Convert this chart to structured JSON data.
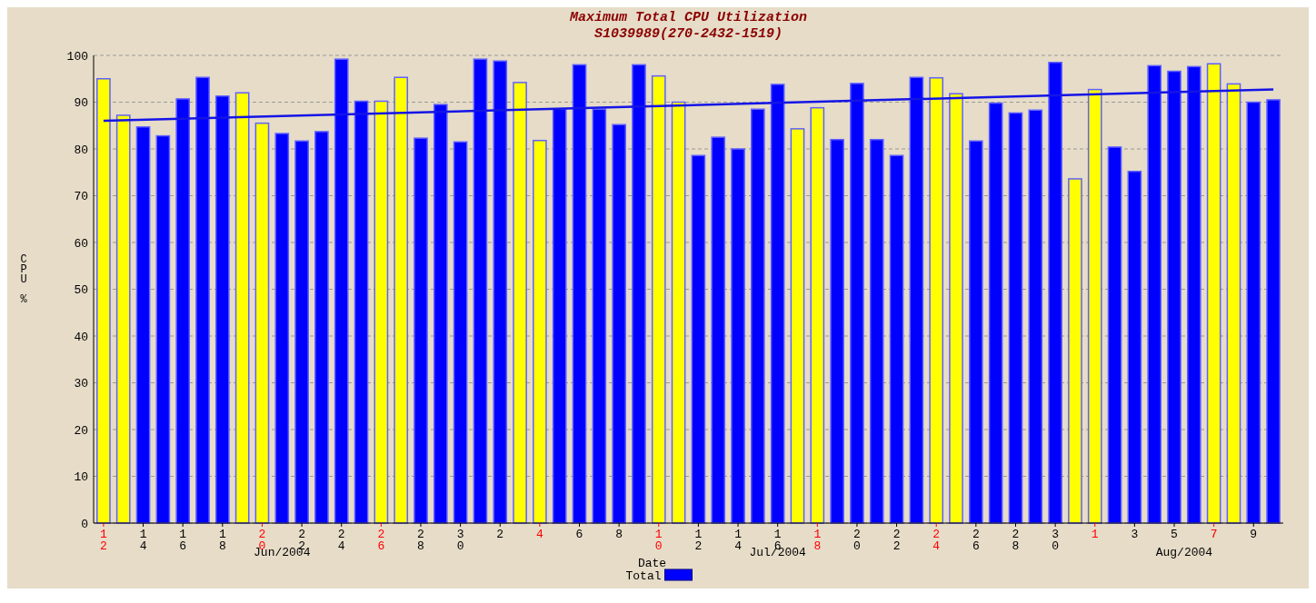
{
  "chart_data": {
    "type": "bar",
    "title": "Maximum Total CPU Utilization",
    "subtitle": "S1039989(270-2432-1519)",
    "xlabel": "Date",
    "ylabel": "CPU %",
    "x": [
      "2004-06-12",
      "2004-06-13",
      "2004-06-14",
      "2004-06-15",
      "2004-06-16",
      "2004-06-17",
      "2004-06-18",
      "2004-06-19",
      "2004-06-20",
      "2004-06-21",
      "2004-06-22",
      "2004-06-23",
      "2004-06-24",
      "2004-06-25",
      "2004-06-26",
      "2004-06-27",
      "2004-06-28",
      "2004-06-29",
      "2004-06-30",
      "2004-07-01",
      "2004-07-02",
      "2004-07-03",
      "2004-07-04",
      "2004-07-05",
      "2004-07-06",
      "2004-07-07",
      "2004-07-08",
      "2004-07-09",
      "2004-07-10",
      "2004-07-11",
      "2004-07-12",
      "2004-07-13",
      "2004-07-14",
      "2004-07-15",
      "2004-07-16",
      "2004-07-17",
      "2004-07-18",
      "2004-07-19",
      "2004-07-20",
      "2004-07-21",
      "2004-07-22",
      "2004-07-23",
      "2004-07-24",
      "2004-07-25",
      "2004-07-26",
      "2004-07-27",
      "2004-07-28",
      "2004-07-29",
      "2004-07-30",
      "2004-07-31",
      "2004-08-01",
      "2004-08-02",
      "2004-08-03",
      "2004-08-04",
      "2004-08-05",
      "2004-08-06",
      "2004-08-07",
      "2004-08-08",
      "2004-08-09",
      "2004-08-10"
    ],
    "series": [
      {
        "name": "Total",
        "color": "#0000ff",
        "colors": [
          "#ffff00",
          "#ffff00",
          "#0000ff",
          "#0000ff",
          "#0000ff",
          "#0000ff",
          "#0000ff",
          "#ffff00",
          "#ffff00",
          "#0000ff",
          "#0000ff",
          "#0000ff",
          "#0000ff",
          "#0000ff",
          "#ffff00",
          "#ffff00",
          "#0000ff",
          "#0000ff",
          "#0000ff",
          "#0000ff",
          "#0000ff",
          "#ffff00",
          "#ffff00",
          "#0000ff",
          "#0000ff",
          "#0000ff",
          "#0000ff",
          "#0000ff",
          "#ffff00",
          "#ffff00",
          "#0000ff",
          "#0000ff",
          "#0000ff",
          "#0000ff",
          "#0000ff",
          "#ffff00",
          "#ffff00",
          "#0000ff",
          "#0000ff",
          "#0000ff",
          "#0000ff",
          "#0000ff",
          "#ffff00",
          "#ffff00",
          "#0000ff",
          "#0000ff",
          "#0000ff",
          "#0000ff",
          "#0000ff",
          "#ffff00",
          "#ffff00",
          "#0000ff",
          "#0000ff",
          "#0000ff",
          "#0000ff",
          "#0000ff",
          "#ffff00",
          "#ffff00",
          "#0000ff",
          "#0000ff"
        ],
        "values": [
          95,
          87.2,
          84.7,
          82.8,
          90.7,
          95.3,
          91.3,
          92,
          85.5,
          83.3,
          81.7,
          83.7,
          99.2,
          90.2,
          90.2,
          95.3,
          82.3,
          89.5,
          81.5,
          99.2,
          98.8,
          94.2,
          81.8,
          88.5,
          98,
          88.5,
          85.2,
          98,
          95.6,
          90,
          78.6,
          82.5,
          80,
          88.5,
          93.8,
          84.3,
          88.8,
          82,
          94,
          82,
          78.6,
          95.3,
          95.2,
          91.8,
          81.7,
          89.8,
          87.7,
          88.3,
          98.5,
          73.6,
          92.7,
          80.4,
          75.2,
          97.8,
          96.6,
          97.6,
          98.2,
          93.9,
          90,
          90.5
        ]
      },
      {
        "type": "line",
        "color": "#1414e6",
        "x": [
          "2004-06-12",
          "2004-08-10"
        ],
        "values": [
          86,
          92.7
        ]
      }
    ],
    "xticks": [
      {
        "value": "2004-06-12",
        "label": "12"
      },
      {
        "value": "2004-06-14",
        "label": "14"
      },
      {
        "value": "2004-06-16",
        "label": "16"
      },
      {
        "value": "2004-06-18",
        "label": "18"
      },
      {
        "value": "2004-06-20",
        "label": "20"
      },
      {
        "value": "2004-06-22",
        "label": "22"
      },
      {
        "value": "2004-06-24",
        "label": "24"
      },
      {
        "value": "2004-06-26",
        "label": "26"
      },
      {
        "value": "2004-06-28",
        "label": "28"
      },
      {
        "value": "2004-06-30",
        "label": "30"
      },
      {
        "value": "2004-07-02",
        "label": "2"
      },
      {
        "value": "2004-07-04",
        "label": "4"
      },
      {
        "value": "2004-07-06",
        "label": "6"
      },
      {
        "value": "2004-07-08",
        "label": "8"
      },
      {
        "value": "2004-07-10",
        "label": "10"
      },
      {
        "value": "2004-07-12",
        "label": "12"
      },
      {
        "value": "2004-07-14",
        "label": "14"
      },
      {
        "value": "2004-07-16",
        "label": "16"
      },
      {
        "value": "2004-07-18",
        "label": "18"
      },
      {
        "value": "2004-07-20",
        "label": "20"
      },
      {
        "value": "2004-07-22",
        "label": "22"
      },
      {
        "value": "2004-07-24",
        "label": "24"
      },
      {
        "value": "2004-07-26",
        "label": "26"
      },
      {
        "value": "2004-07-28",
        "label": "28"
      },
      {
        "value": "2004-07-30",
        "label": "30"
      },
      {
        "value": "2004-08-01",
        "label": "1"
      },
      {
        "value": "2004-08-03",
        "label": "3"
      },
      {
        "value": "2004-08-05",
        "label": "5"
      },
      {
        "value": "2004-08-07",
        "label": "7"
      },
      {
        "value": "2004-08-09",
        "label": "9"
      }
    ],
    "xlim": [
      "2004-06-11T12:00",
      "2004-08-10T12:00"
    ],
    "ylim": [
      0,
      100
    ],
    "yticks": [
      0,
      10,
      20,
      30,
      40,
      50,
      60,
      70,
      80,
      90,
      100
    ],
    "annotations": [
      "Jun/2004",
      "Jul/2004",
      "Aug/2004"
    ],
    "grid": "y",
    "legend": "bottom"
  }
}
